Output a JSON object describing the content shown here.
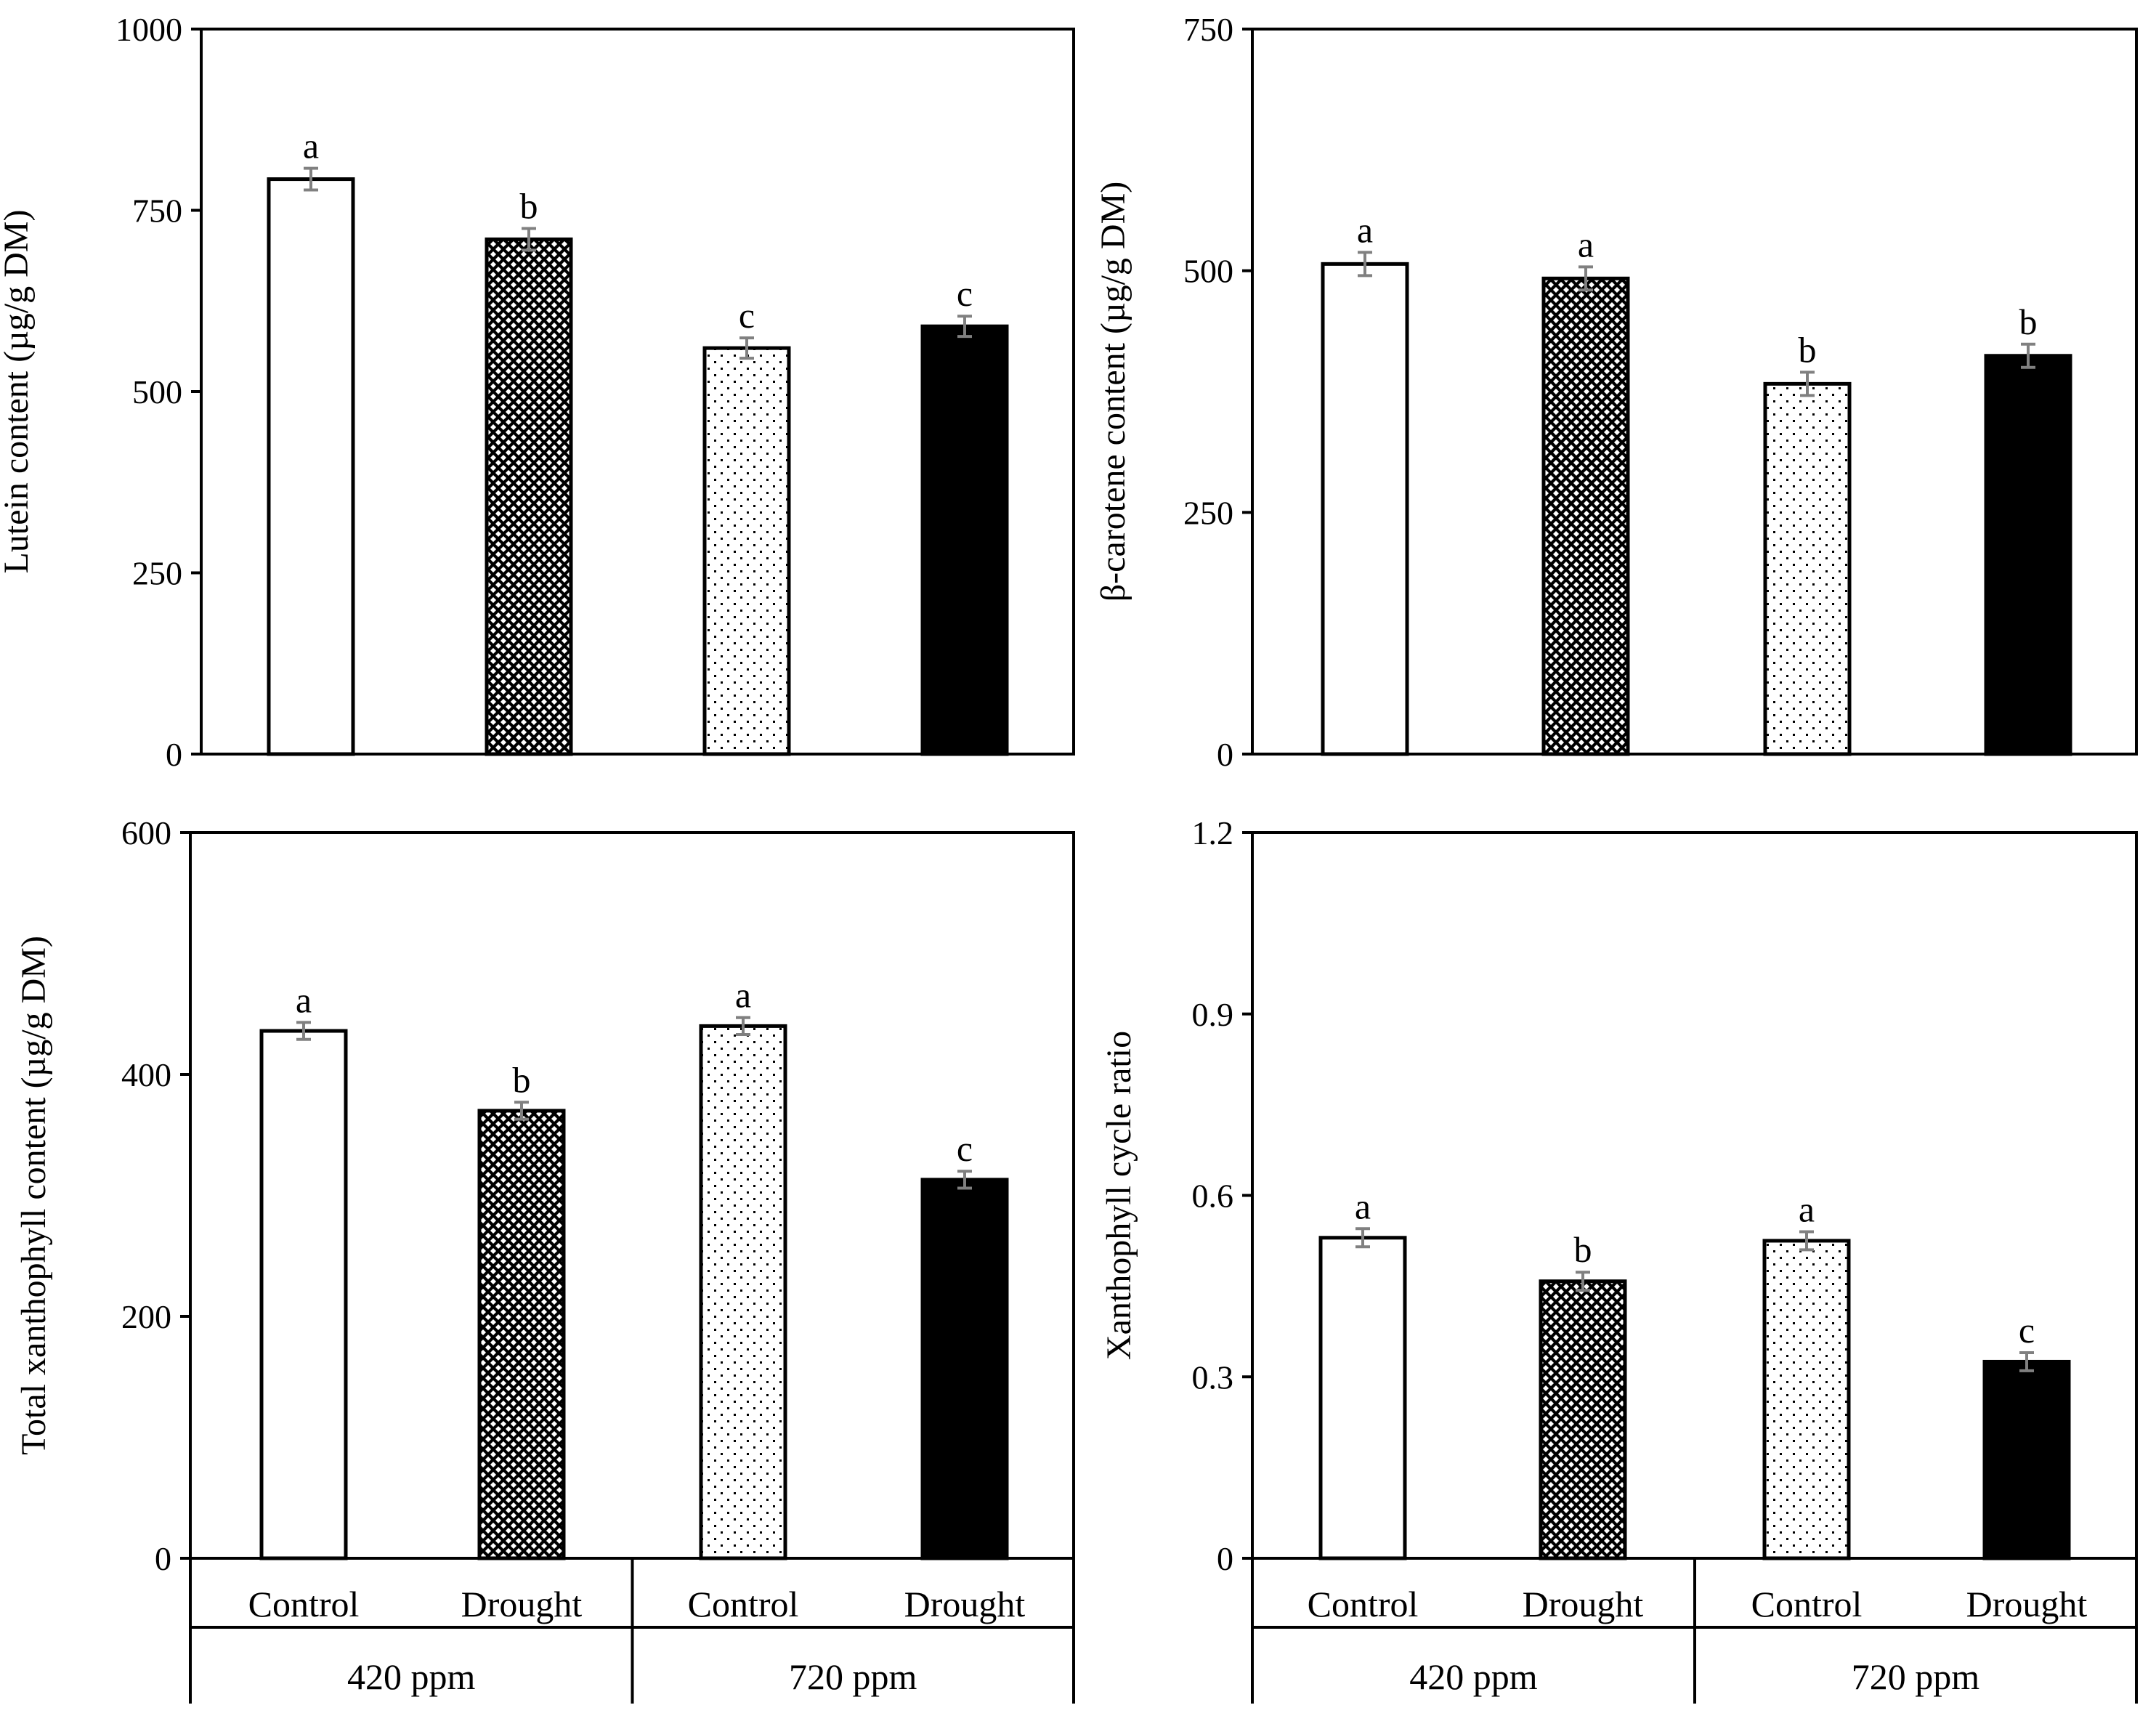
{
  "chart_data": [
    {
      "type": "bar",
      "panel": "top-left",
      "categories": [
        "Control",
        "Drought",
        "Control",
        "Drought"
      ],
      "groups": [
        "420 ppm",
        "720 ppm"
      ],
      "ylabel": "Lutein content (µg/g DM)",
      "ylim": [
        0,
        1000
      ],
      "yticks": [
        "0",
        "250",
        "500",
        "750",
        "1000"
      ],
      "values": [
        793,
        710,
        560,
        590
      ],
      "errors": [
        15,
        15,
        14,
        14
      ],
      "letters": [
        "a",
        "b",
        "c",
        "c"
      ],
      "patterns": [
        "white",
        "crosshatch",
        "dots",
        "black"
      ],
      "grid": false,
      "show_xaxis_labels": false
    },
    {
      "type": "bar",
      "panel": "top-right",
      "categories": [
        "Control",
        "Drought",
        "Control",
        "Drought"
      ],
      "groups": [
        "420 ppm",
        "720 ppm"
      ],
      "ylabel": "β-carotene content (µg/g DM)",
      "ylim": [
        0,
        750
      ],
      "yticks": [
        "0",
        "250",
        "500",
        "750"
      ],
      "values": [
        507,
        492,
        383,
        412
      ],
      "errors": [
        12,
        12,
        12,
        12
      ],
      "letters": [
        "a",
        "a",
        "b",
        "b"
      ],
      "patterns": [
        "white",
        "crosshatch",
        "dots",
        "black"
      ],
      "grid": false,
      "show_xaxis_labels": false
    },
    {
      "type": "bar",
      "panel": "bottom-left",
      "categories": [
        "Control",
        "Drought",
        "Control",
        "Drought"
      ],
      "groups": [
        "420 ppm",
        "720 ppm"
      ],
      "ylabel": "Total xanthophyll content  (µg/g DM)",
      "ylim": [
        0,
        600
      ],
      "yticks": [
        "0",
        "200",
        "400",
        "600"
      ],
      "values": [
        436,
        370,
        440,
        313
      ],
      "errors": [
        7,
        7,
        7,
        7
      ],
      "letters": [
        "a",
        "b",
        "a",
        "c"
      ],
      "patterns": [
        "white",
        "crosshatch",
        "dots",
        "black"
      ],
      "grid": false,
      "show_xaxis_labels": true
    },
    {
      "type": "bar",
      "panel": "bottom-right",
      "categories": [
        "Control",
        "Drought",
        "Control",
        "Drought"
      ],
      "groups": [
        "420 ppm",
        "720 ppm"
      ],
      "ylabel": "Xanthophyll cycle ratio",
      "ylim": [
        0,
        1.2
      ],
      "yticks": [
        "0",
        "0.3",
        "0.6",
        "0.9",
        "1.2"
      ],
      "values": [
        0.53,
        0.458,
        0.525,
        0.325
      ],
      "errors": [
        0.015,
        0.015,
        0.015,
        0.015
      ],
      "letters": [
        "a",
        "b",
        "a",
        "c"
      ],
      "patterns": [
        "white",
        "crosshatch",
        "dots",
        "black"
      ],
      "grid": false,
      "show_xaxis_labels": true
    }
  ],
  "colors": {
    "bar_outline": "#000000",
    "error_bar": "#808080",
    "background": "#ffffff"
  }
}
